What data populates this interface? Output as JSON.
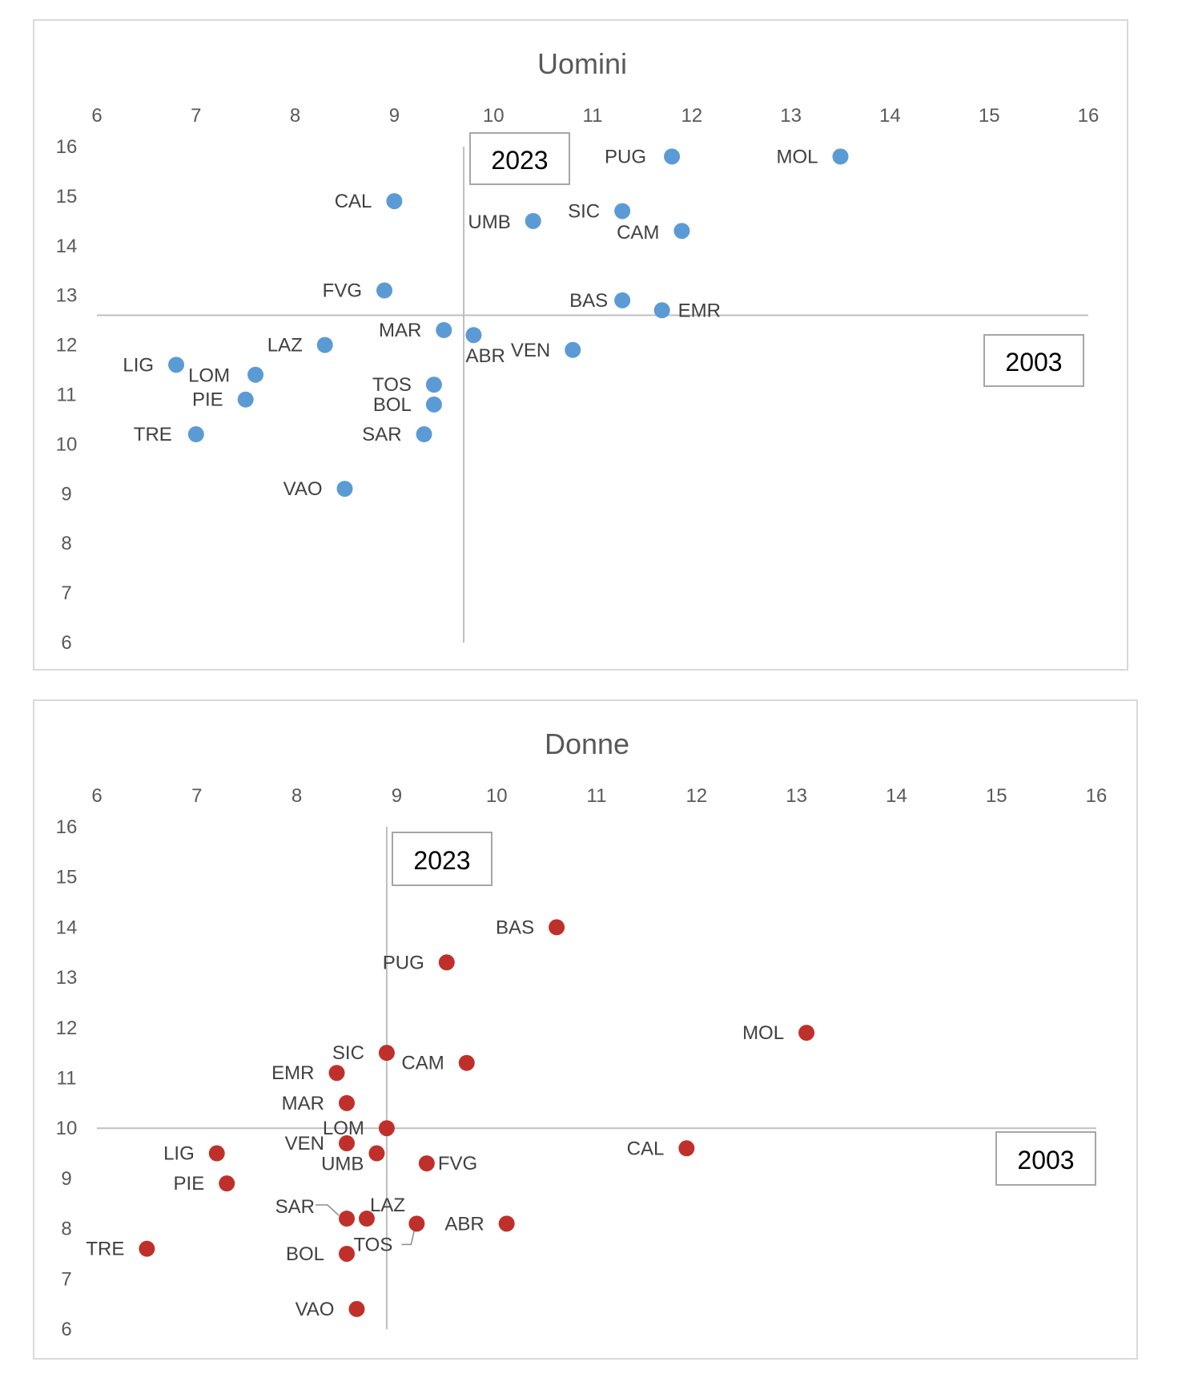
{
  "chart_data": [
    {
      "type": "scatter",
      "title": "Uomini",
      "xlim": [
        6,
        16
      ],
      "ylim": [
        6,
        16
      ],
      "x_ticks": [
        "6",
        "7",
        "8",
        "9",
        "10",
        "11",
        "12",
        "13",
        "14",
        "15",
        "16"
      ],
      "y_ticks": [
        "16",
        "15",
        "14",
        "13",
        "12",
        "11",
        "10",
        "9",
        "8",
        "7",
        "6"
      ],
      "vertical_line_x": 9.7,
      "horizontal_line_y": 12.6,
      "quadrant_labels": {
        "vertical": "2023",
        "horizontal": "2003"
      },
      "point_color": "#5b9bd5",
      "points": [
        {
          "label": "PUG",
          "x": 11.8,
          "y": 15.8
        },
        {
          "label": "MOL",
          "x": 13.5,
          "y": 15.8
        },
        {
          "label": "CAL",
          "x": 9.0,
          "y": 14.9
        },
        {
          "label": "UMB",
          "x": 10.4,
          "y": 14.5
        },
        {
          "label": "SIC",
          "x": 11.3,
          "y": 14.7
        },
        {
          "label": "CAM",
          "x": 11.9,
          "y": 14.3
        },
        {
          "label": "FVG",
          "x": 8.9,
          "y": 13.1
        },
        {
          "label": "BAS",
          "x": 11.3,
          "y": 12.9
        },
        {
          "label": "EMR",
          "x": 11.7,
          "y": 12.7
        },
        {
          "label": "MAR",
          "x": 9.5,
          "y": 12.3
        },
        {
          "label": "ABR",
          "x": 9.8,
          "y": 12.2
        },
        {
          "label": "LAZ",
          "x": 8.3,
          "y": 12.0
        },
        {
          "label": "VEN",
          "x": 10.8,
          "y": 11.9
        },
        {
          "label": "LIG",
          "x": 6.8,
          "y": 11.6
        },
        {
          "label": "LOM",
          "x": 7.6,
          "y": 11.4
        },
        {
          "label": "TOS",
          "x": 9.4,
          "y": 11.2
        },
        {
          "label": "PIE",
          "x": 7.5,
          "y": 10.9
        },
        {
          "label": "BOL",
          "x": 9.4,
          "y": 10.8
        },
        {
          "label": "TRE",
          "x": 7.0,
          "y": 10.2
        },
        {
          "label": "SAR",
          "x": 9.3,
          "y": 10.2
        },
        {
          "label": "VAO",
          "x": 8.5,
          "y": 9.1
        }
      ]
    },
    {
      "type": "scatter",
      "title": "Donne",
      "xlim": [
        6,
        16
      ],
      "ylim": [
        6,
        16
      ],
      "x_ticks": [
        "6",
        "7",
        "8",
        "9",
        "10",
        "11",
        "12",
        "13",
        "14",
        "15",
        "16"
      ],
      "y_ticks": [
        "16",
        "15",
        "14",
        "13",
        "12",
        "11",
        "10",
        "9",
        "8",
        "7",
        "6"
      ],
      "vertical_line_x": 8.9,
      "horizontal_line_y": 10.0,
      "quadrant_labels": {
        "vertical": "2023",
        "horizontal": "2003"
      },
      "point_color": "#c0302b",
      "points": [
        {
          "label": "BAS",
          "x": 10.6,
          "y": 14.0
        },
        {
          "label": "PUG",
          "x": 9.5,
          "y": 13.3
        },
        {
          "label": "MOL",
          "x": 13.1,
          "y": 11.9
        },
        {
          "label": "SIC",
          "x": 8.9,
          "y": 11.5
        },
        {
          "label": "CAM",
          "x": 9.7,
          "y": 11.3
        },
        {
          "label": "EMR",
          "x": 8.4,
          "y": 11.1
        },
        {
          "label": "MAR",
          "x": 8.5,
          "y": 10.5
        },
        {
          "label": "LOM",
          "x": 8.9,
          "y": 10.0
        },
        {
          "label": "VEN",
          "x": 8.5,
          "y": 9.7
        },
        {
          "label": "LIG",
          "x": 7.2,
          "y": 9.5
        },
        {
          "label": "UMB",
          "x": 8.8,
          "y": 9.5
        },
        {
          "label": "FVG",
          "x": 9.3,
          "y": 9.3
        },
        {
          "label": "CAL",
          "x": 11.9,
          "y": 9.6
        },
        {
          "label": "PIE",
          "x": 7.3,
          "y": 8.9
        },
        {
          "label": "SAR",
          "x": 8.5,
          "y": 8.2
        },
        {
          "label": "LAZ",
          "x": 8.7,
          "y": 8.2
        },
        {
          "label": "TOS",
          "x": 9.2,
          "y": 8.1
        },
        {
          "label": "ABR",
          "x": 10.1,
          "y": 8.1
        },
        {
          "label": "TRE",
          "x": 6.5,
          "y": 7.6
        },
        {
          "label": "BOL",
          "x": 8.5,
          "y": 7.5
        },
        {
          "label": "VAO",
          "x": 8.6,
          "y": 6.4
        }
      ]
    }
  ]
}
